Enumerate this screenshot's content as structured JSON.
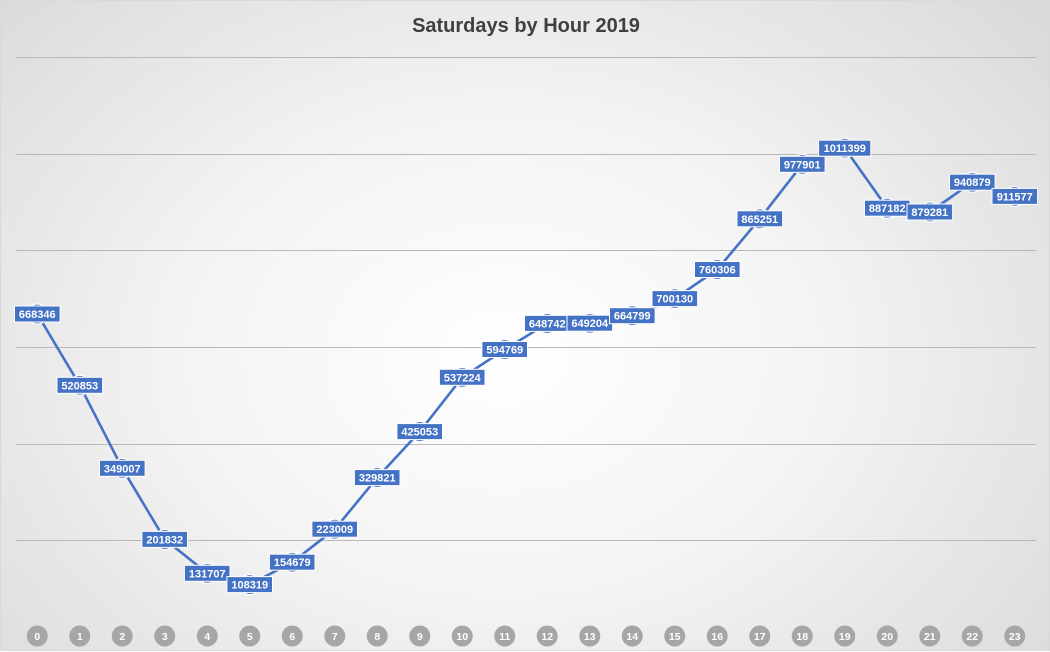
{
  "chart_data": {
    "type": "line",
    "title": "Saturdays by Hour 2019",
    "categories": [
      "0",
      "1",
      "2",
      "3",
      "4",
      "5",
      "6",
      "7",
      "8",
      "9",
      "10",
      "11",
      "12",
      "13",
      "14",
      "15",
      "16",
      "17",
      "18",
      "19",
      "20",
      "21",
      "22",
      "23"
    ],
    "values": [
      668346,
      520853,
      349007,
      201832,
      131707,
      108319,
      154679,
      223009,
      329821,
      425053,
      537224,
      594769,
      648742,
      649204,
      664799,
      700130,
      760306,
      865251,
      977901,
      1011399,
      887182,
      879281,
      940879,
      911577
    ],
    "ylim": [
      0,
      1200000
    ],
    "grid": true,
    "data_labels": true,
    "legend": "none",
    "colors": {
      "series": "#4472c4",
      "gridline": "#b8b8b8",
      "tick_badge": "#a6a6a6",
      "title": "#404040"
    }
  }
}
